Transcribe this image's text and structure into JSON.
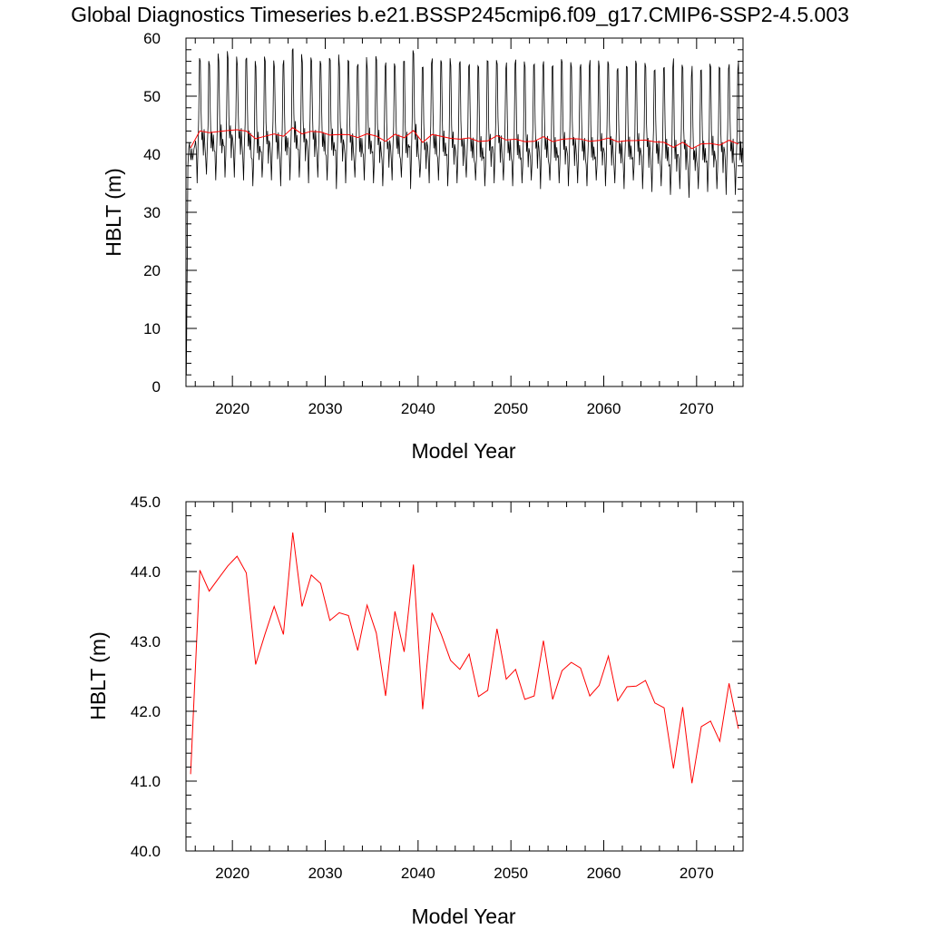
{
  "figure": {
    "title": "Global Diagnostics Timeseries b.e21.BSSP245cmip6.f09_g17.CMIP6-SSP2-4.5.003"
  },
  "colors": {
    "monthly_line": "#000000",
    "annual_line": "#ff0000",
    "axes": "#000000",
    "background": "#ffffff"
  },
  "chart_data": [
    {
      "type": "line",
      "panel": "top",
      "xlabel": "Model Year",
      "ylabel": "HBLT (m)",
      "xlim": [
        2015,
        2075
      ],
      "ylim": [
        0,
        60
      ],
      "xtick_labels": [
        "2020",
        "2030",
        "2040",
        "2050",
        "2060",
        "2070"
      ],
      "ytick_labels": [
        "0",
        "10",
        "20",
        "30",
        "40",
        "50",
        "60"
      ],
      "grid": false,
      "legend": "none",
      "series": [
        {
          "color": "#000000",
          "sampling": "monthly",
          "x_start": 2015.04,
          "x_step": 0.0833,
          "first_year_values": [
            2.0,
            20.0,
            38.0,
            41.0,
            42.0,
            40.0,
            39.0,
            41.0,
            39.0,
            40.0,
            41.0,
            41.5
          ],
          "seasonal_cycle_anomaly": [
            -2.5,
            -3.5,
            -5.5,
            -3.5,
            1.5,
            13.0,
            13.5,
            3.0,
            -2.0,
            0.5,
            -4.0,
            -0.5
          ],
          "annual_peak_values": [
            56.3,
            56.0,
            55.3,
            56.0,
            56.5,
            55.2,
            56.6,
            55.0,
            56.0,
            54.8,
            56.2,
            58.2,
            55.8,
            56.0,
            55.5,
            56.2,
            55.0,
            56.0,
            55.5,
            54.5,
            56.2,
            55.8,
            55.0,
            56.0,
            57.3,
            55.0,
            56.5,
            55.8,
            55.2,
            56.0,
            55.5,
            55.0,
            56.0,
            55.5,
            55.8,
            56.3,
            55.0,
            55.5,
            56.0,
            55.2,
            55.8,
            55.0,
            55.5,
            56.2,
            55.0,
            55.5,
            54.8,
            55.0,
            55.5,
            55.0,
            54.5,
            55.0,
            56.5,
            54.8,
            55.2,
            54.5,
            55.0,
            54.8,
            55.5,
            56.0
          ],
          "annual_trough_values": [
            35.0,
            35.0,
            36.5,
            35.5,
            36.0,
            36.0,
            35.5,
            34.5,
            36.0,
            35.5,
            34.5,
            35.5,
            36.0,
            35.0,
            36.0,
            35.5,
            34.0,
            35.0,
            36.0,
            35.5,
            35.0,
            34.5,
            35.5,
            36.0,
            34.0,
            36.0,
            35.0,
            35.5,
            34.5,
            35.0,
            36.0,
            35.5,
            34.5,
            35.0,
            35.5,
            34.5,
            35.0,
            35.5,
            34.0,
            35.5,
            35.0,
            34.5,
            35.0,
            34.5,
            35.5,
            34.5,
            35.0,
            34.0,
            35.5,
            34.0,
            33.5,
            34.5,
            33.0,
            34.0,
            32.5,
            34.0,
            33.5,
            34.0,
            33.0,
            33.0
          ]
        },
        {
          "color": "#ff0000",
          "sampling": "annual mean",
          "source": "same series as bottom panel"
        }
      ]
    },
    {
      "type": "line",
      "panel": "bottom",
      "xlabel": "Model Year",
      "ylabel": "HBLT (m)",
      "xlim": [
        2015,
        2075
      ],
      "ylim": [
        40.0,
        45.0
      ],
      "xtick_labels": [
        "2020",
        "2030",
        "2040",
        "2050",
        "2060",
        "2070"
      ],
      "ytick_labels": [
        "40.0",
        "41.0",
        "42.0",
        "43.0",
        "44.0",
        "45.0"
      ],
      "grid": false,
      "legend": "none",
      "series": [
        {
          "color": "#ff0000",
          "x": [
            2015.5,
            2016.5,
            2017.5,
            2018.5,
            2019.5,
            2020.5,
            2021.5,
            2022.5,
            2023.5,
            2024.5,
            2025.5,
            2026.5,
            2027.5,
            2028.5,
            2029.5,
            2030.5,
            2031.5,
            2032.5,
            2033.5,
            2034.5,
            2035.5,
            2036.5,
            2037.5,
            2038.5,
            2039.5,
            2040.5,
            2041.5,
            2042.5,
            2043.5,
            2044.5,
            2045.5,
            2046.5,
            2047.5,
            2048.5,
            2049.5,
            2050.5,
            2051.5,
            2052.5,
            2053.5,
            2054.5,
            2055.5,
            2056.5,
            2057.5,
            2058.5,
            2059.5,
            2060.5,
            2061.5,
            2062.5,
            2063.5,
            2064.5,
            2065.5,
            2066.5,
            2067.5,
            2068.5,
            2069.5,
            2070.5,
            2071.5,
            2072.5,
            2073.5,
            2074.5
          ],
          "y": [
            41.1,
            44.02,
            43.72,
            43.9,
            44.08,
            44.22,
            43.98,
            42.67,
            43.1,
            43.5,
            43.1,
            44.56,
            43.5,
            43.95,
            43.83,
            43.3,
            43.41,
            43.37,
            42.87,
            43.52,
            43.12,
            42.22,
            43.43,
            42.85,
            44.1,
            42.03,
            43.41,
            43.1,
            42.73,
            42.6,
            42.82,
            42.21,
            42.3,
            43.18,
            42.46,
            42.6,
            42.17,
            42.22,
            43.01,
            42.17,
            42.58,
            42.7,
            42.62,
            42.22,
            42.37,
            42.79,
            42.15,
            42.35,
            42.36,
            42.44,
            42.12,
            42.05,
            41.18,
            42.06,
            40.97,
            41.78,
            41.86,
            41.57,
            42.4,
            41.75
          ]
        }
      ]
    }
  ]
}
